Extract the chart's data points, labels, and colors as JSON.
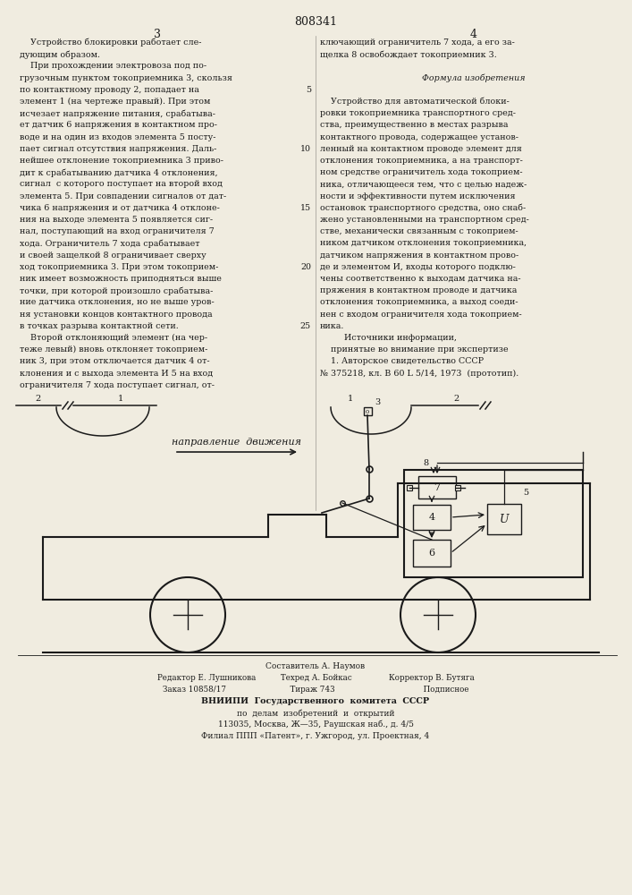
{
  "patent_number": "808341",
  "page_left": "3",
  "page_right": "4",
  "bg_color": "#f0ece0",
  "text_color": "#1a1a1a",
  "left_col_lines": [
    "    Устройство блокировки работает сле-",
    "дующим образом.",
    "    При прохождении электровоза под по-",
    "грузочным пунктом токоприемника 3, скользя",
    "по контактному проводу 2, попадает на",
    "элемент 1 (на чертеже правый). При этом",
    "исчезает напряжение питания, срабатыва-",
    "ет датчик 6 напряжения в контактном про-",
    "воде и на один из входов элемента 5 посту-",
    "пает сигнал отсутствия напряжения. Даль-",
    "нейшее отклонение токоприемника 3 приво-",
    "дит к срабатыванию датчика 4 отклонения,",
    "сигнал  с которого поступает на второй вход",
    "элемента 5. При совпадении сигналов от дат-",
    "чика 6 напряжения и от датчика 4 отклоне-",
    "ния на выходе элемента 5 появляется сиг-",
    "нал, поступающий на вход ограничителя 7",
    "хода. Ограничитель 7 хода срабатывает",
    "и своей защелкой 8 ограничивает сверху",
    "ход токоприемника 3. При этом токоприем-",
    "ник имеет возможность приподняться выше",
    "точки, при которой произошло срабатыва-",
    "ние датчика отклонения, но не выше уров-",
    "ня установки концов контактного провода",
    "в точках разрыва контактной сети.",
    "    Второй отклоняющий элемент (на чер-",
    "теже левый) вновь отклоняет токоприем-",
    "ник 3, при этом отключается датчик 4 от-",
    "клонения и с выхода элемента И 5 на вход",
    "ограничителя 7 хода поступает сигнал, от-"
  ],
  "right_col_lines": [
    "ключающий ограничитель 7 хода, а его за-",
    "щелка 8 освобождает токоприемник 3.",
    "",
    "    Формула изобретения",
    "",
    "    Устройство для автоматической блоки-",
    "ровки токоприемника транспортного сред-",
    "ства, преимущественно в местах разрыва",
    "контактного провода, содержащее установ-",
    "ленный на контактном проводе элемент для",
    "отклонения токоприемника, а на транспорт-",
    "ном средстве ограничитель хода токоприем-",
    "ника, отличающееся тем, что с целью надеж-",
    "ности и эффективности путем исключения",
    "остановок транспортного средства, оно снаб-",
    "жено установленными на транспортном сред-",
    "стве, механически связанным с токоприем-",
    "ником датчиком отклонения токоприемника,",
    "датчиком напряжения в контактном прово-",
    "де и элементом И, входы которого подклю-",
    "чены соответственно к выходам датчика на-",
    "пряжения в контактном проводе и датчика",
    "отклонения токоприемника, а выход соеди-",
    "нен с входом ограничителя хода токоприем-",
    "ника.",
    "         Источники информации,",
    "    принятые во внимание при экспертизе",
    "    1. Авторское свидетельство СССР",
    "№ 375218, кл. В 60 L 5/14, 1973  (прототип)."
  ],
  "line_nums": {
    "4": "5",
    "9": "10",
    "14": "15",
    "19": "20",
    "24": "25"
  },
  "footer_lines": [
    "Составитель А. Наумов",
    "Редактор Е. Лушникова          Техред А. Бойкас               Корректор В. Бутяга",
    "Заказ 10858/17                          Тираж 743                                    Подписное",
    "ВНИИПИ  Государственного  комитета  СССР",
    "по  делам  изобретений  и  открытий",
    "113035, Москва, Ж—35, Раушская наб., д. 4/5",
    "Филиал ППП «Патент», г. Ужгород, ул. Проектная, 4"
  ]
}
